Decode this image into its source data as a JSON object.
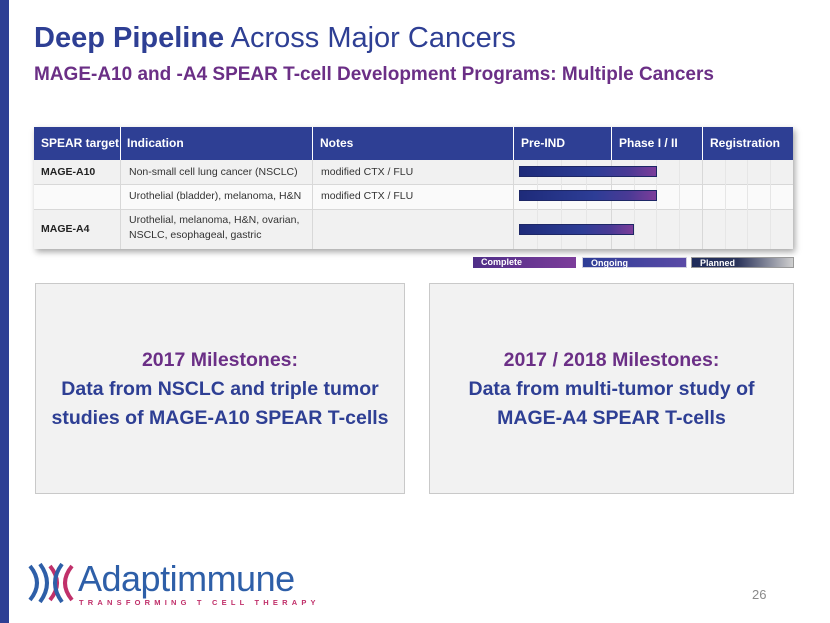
{
  "title": {
    "bold": "Deep Pipeline",
    "rest": "Across Major Cancers"
  },
  "subtitle": "MAGE-A10 and -A4 SPEAR T-cell Development Programs: Multiple Cancers",
  "table": {
    "headers": [
      "SPEAR target",
      "Indication",
      "Notes",
      "Pre-IND",
      "Phase I / II",
      "Registration"
    ],
    "rows": [
      {
        "target": "MAGE-A10",
        "indication": "Non-small cell lung cancer (NSCLC)",
        "notes": "modified CTX / FLU",
        "progress_stage": "Phase I / II"
      },
      {
        "target": "",
        "indication": "Urothelial (bladder), melanoma, H&N",
        "notes": "modified CTX / FLU",
        "progress_stage": "Phase I / II"
      },
      {
        "target": "MAGE-A4",
        "indication_line1": "Urothelial, melanoma, H&N, ovarian,",
        "indication_line2": "NSCLC, esophageal, gastric",
        "notes": "",
        "progress_stage": "Phase I / II"
      }
    ]
  },
  "legend": {
    "complete": "Complete",
    "ongoing": "Ongoing",
    "planned": "Planned"
  },
  "milestones": [
    {
      "heading": "2017 Milestones:",
      "line1": "Data from NSCLC and triple tumor",
      "line2": "studies of MAGE-A10 SPEAR T-cells"
    },
    {
      "heading": "2017 / 2018 Milestones:",
      "line1": "Data from multi-tumor study of",
      "line2": "MAGE-A4 SPEAR T-cells"
    }
  ],
  "logo": {
    "name": "Adaptimmune",
    "tagline": "TRANSFORMING T CELL THERAPY"
  },
  "page_number": "26",
  "colors": {
    "navy": "#2e3f94",
    "purple": "#6b2f86",
    "logo_blue": "#2e5fa8",
    "logo_magenta": "#c0306a"
  }
}
